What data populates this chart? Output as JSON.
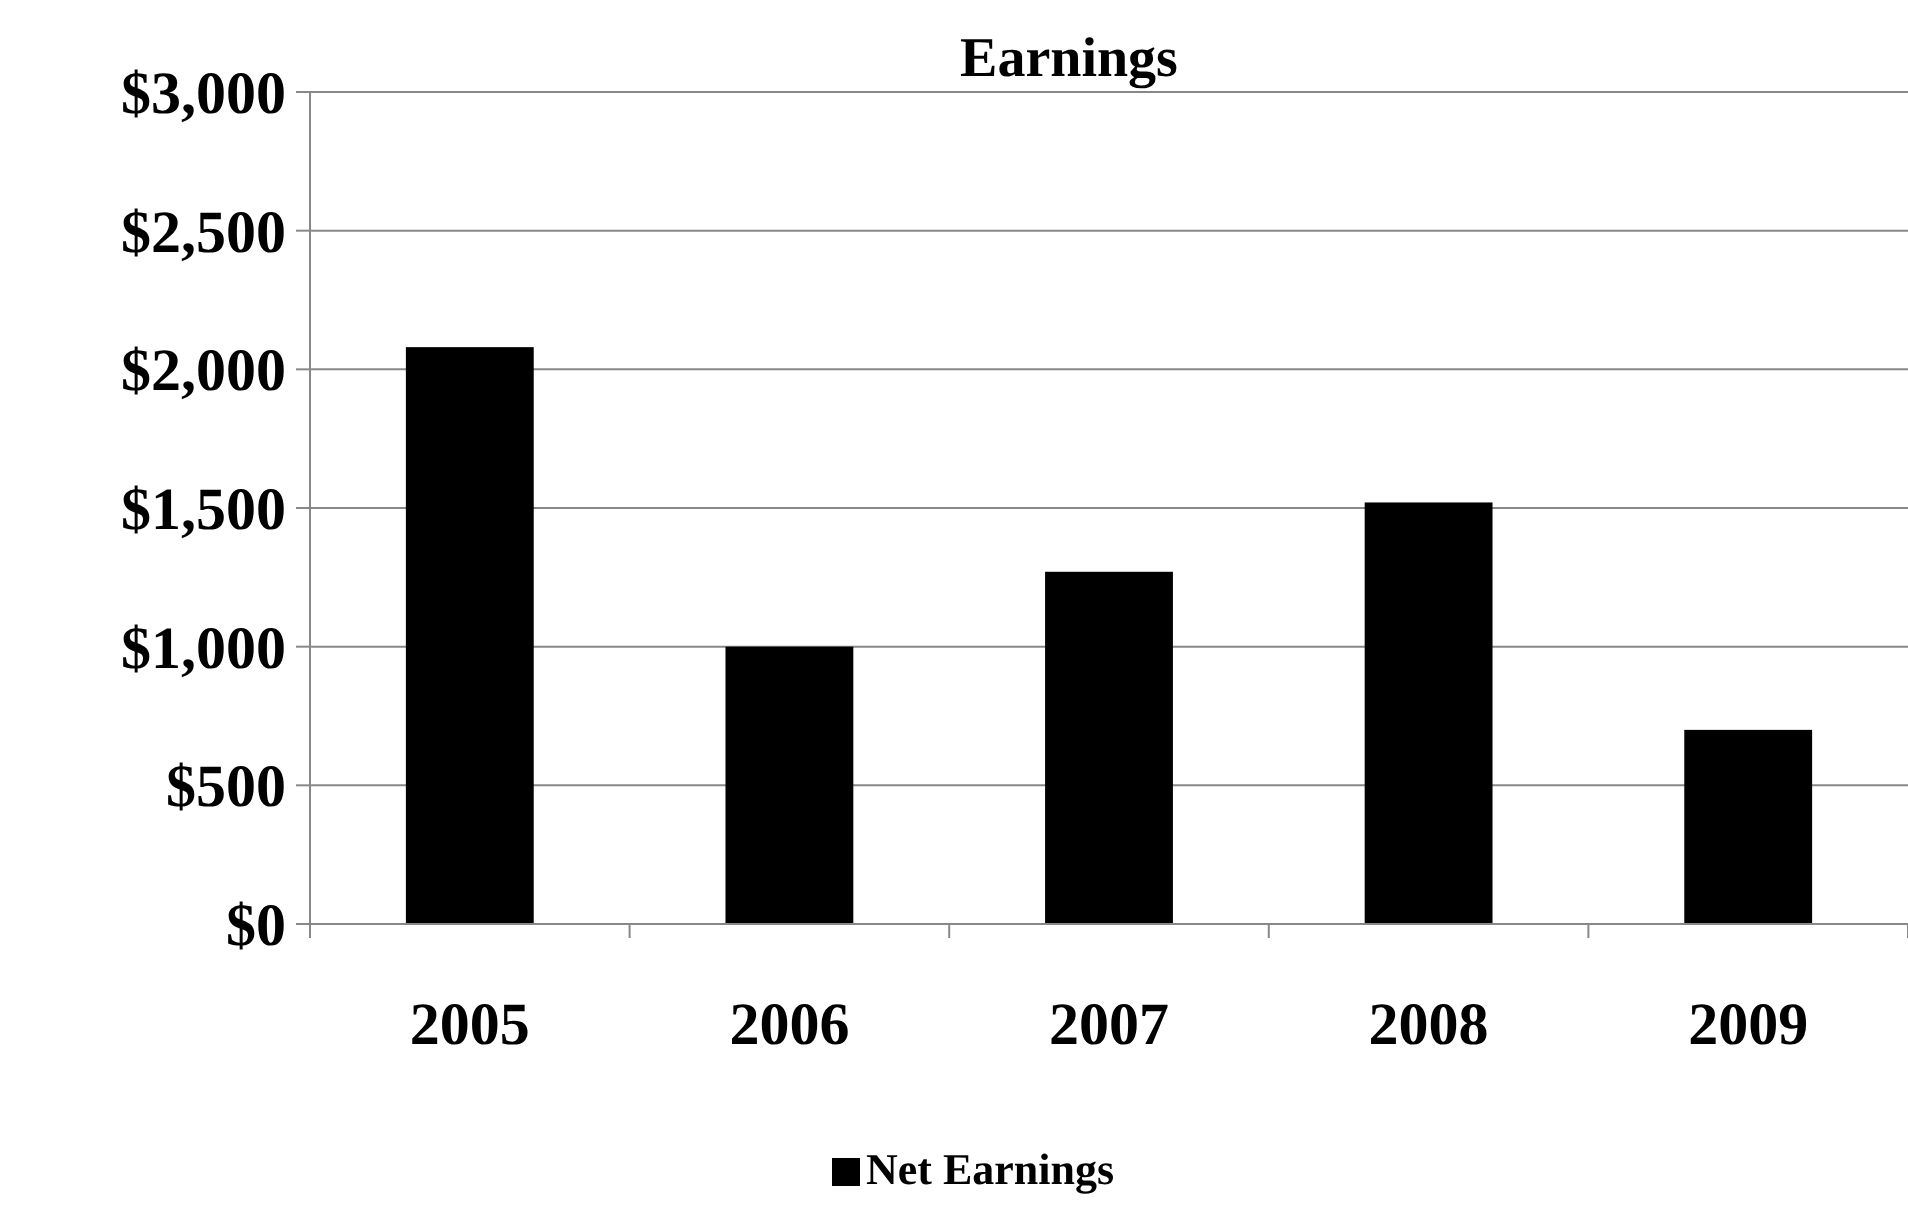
{
  "chart_data": {
    "type": "bar",
    "title": "Earnings",
    "categories": [
      "2005",
      "2006",
      "2007",
      "2008",
      "2009"
    ],
    "series": [
      {
        "name": "Net Earnings",
        "color": "#000000",
        "values": [
          2080,
          1000,
          1270,
          1520,
          700
        ]
      }
    ],
    "ylim": [
      0,
      3000
    ],
    "yticks": [
      {
        "value": 0,
        "label": "$0"
      },
      {
        "value": 500,
        "label": "$500"
      },
      {
        "value": 1000,
        "label": "$1,000"
      },
      {
        "value": 1500,
        "label": "$1,500"
      },
      {
        "value": 2000,
        "label": "$2,000"
      },
      {
        "value": 2500,
        "label": "$2,500"
      },
      {
        "value": 3000,
        "label": "$3,000"
      }
    ],
    "grid": "y",
    "legend": "bottom"
  }
}
